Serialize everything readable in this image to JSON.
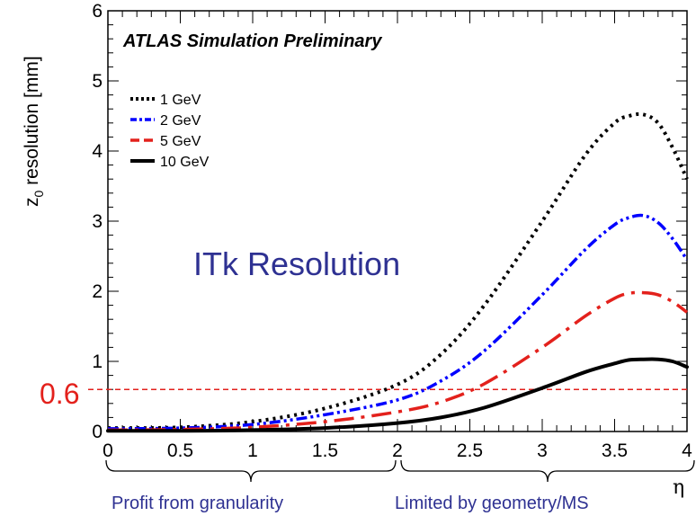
{
  "chart_data": {
    "type": "line",
    "title": "",
    "annotation_top": "ATLAS Simulation Preliminary",
    "annotation_center": "ITk Resolution",
    "xlabel": "η",
    "ylabel": "z0 resolution [mm]",
    "ylabel_main": "z",
    "ylabel_sub": "0",
    "ylabel_rest": " resolution [mm]",
    "xlim": [
      0,
      4
    ],
    "ylim": [
      0,
      6
    ],
    "x_ticks": [
      "0",
      "0.5",
      "1",
      "1.5",
      "2",
      "2.5",
      "3",
      "3.5",
      "4"
    ],
    "y_ticks": [
      "0",
      "1",
      "2",
      "3",
      "4",
      "5",
      "6"
    ],
    "legend_position": "top-left",
    "reference_line": {
      "y": 0.6,
      "label": "0.6",
      "color": "#e3211c"
    },
    "regions": [
      {
        "label": "Profit from granularity",
        "x_range": [
          0,
          2
        ]
      },
      {
        "label": "Limited by geometry/MS",
        "x_range": [
          2,
          4
        ]
      }
    ],
    "x": [
      0,
      0.5,
      1.0,
      1.5,
      2.0,
      2.3,
      2.6,
      3.0,
      3.3,
      3.5,
      3.6,
      3.7,
      3.8,
      3.9,
      4.0
    ],
    "series": [
      {
        "name": "1 GeV",
        "color": "#000000",
        "style": "dotted",
        "values": [
          0.05,
          0.06,
          0.14,
          0.33,
          0.67,
          1.1,
          1.8,
          3.0,
          3.95,
          4.4,
          4.5,
          4.52,
          4.4,
          4.05,
          3.6
        ]
      },
      {
        "name": "2 GeV",
        "color": "#0000ff",
        "style": "dash-dot-dot",
        "values": [
          0.04,
          0.05,
          0.1,
          0.24,
          0.45,
          0.72,
          1.15,
          1.95,
          2.6,
          2.95,
          3.05,
          3.08,
          2.98,
          2.75,
          2.45
        ]
      },
      {
        "name": "5 GeV",
        "color": "#e3211c",
        "style": "long-dash-dot",
        "values": [
          0.02,
          0.03,
          0.06,
          0.14,
          0.28,
          0.42,
          0.68,
          1.2,
          1.65,
          1.9,
          1.97,
          1.98,
          1.95,
          1.85,
          1.7
        ]
      },
      {
        "name": "10 GeV",
        "color": "#000000",
        "style": "solid",
        "values": [
          0.01,
          0.01,
          0.02,
          0.05,
          0.12,
          0.2,
          0.34,
          0.62,
          0.85,
          0.97,
          1.02,
          1.03,
          1.03,
          1.0,
          0.92
        ]
      }
    ]
  }
}
